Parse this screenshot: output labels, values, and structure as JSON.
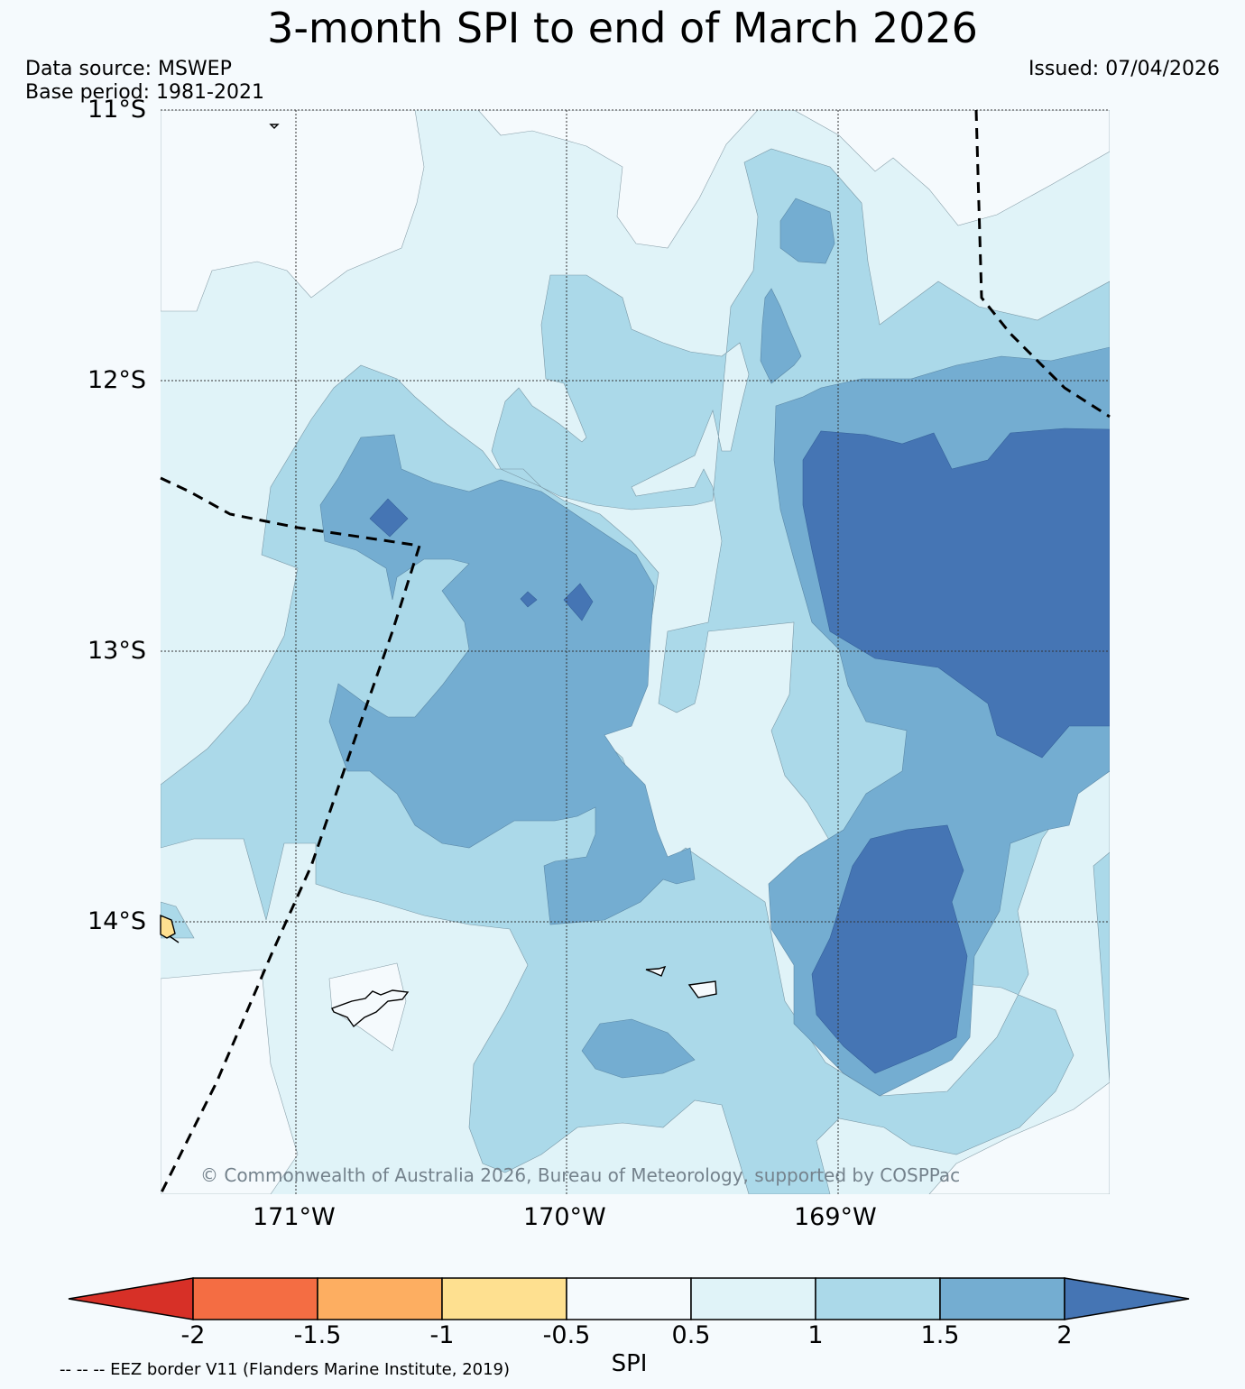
{
  "title": "3-month SPI to end of March 2026",
  "meta": {
    "data_source": "Data source: MSWEP",
    "base_period": "Base period: 1981-2021",
    "issued": "Issued: 07/04/2026"
  },
  "map": {
    "lat_labels": [
      "11°S",
      "12°S",
      "13°S",
      "14°S"
    ],
    "lon_labels": [
      "171°W",
      "170°W",
      "169°W"
    ],
    "copyright": "© Commonwealth of Australia 2026, Bureau of Meteorology, supported by COSPPac",
    "eez_note": "-- -- -- EEZ border V11 (Flanders Marine Institute, 2019)"
  },
  "colorbar": {
    "label": "SPI",
    "ticks": [
      "-2",
      "-1.5",
      "-1",
      "-0.5",
      "0.5",
      "1",
      "1.5",
      "2"
    ],
    "colors": {
      "below_-2": "#d73027",
      "-2_to_-1.5": "#f46d43",
      "-1.5_to_-1": "#fdae61",
      "-1_to_-0.5": "#fee090",
      "-0.5_to_0.5": "#f5fafd",
      "0.5_to_1": "#e0f3f8",
      "1_to_1.5": "#abd9e9",
      "1.5_to_2": "#74add1",
      "above_2": "#4575b4"
    }
  }
}
